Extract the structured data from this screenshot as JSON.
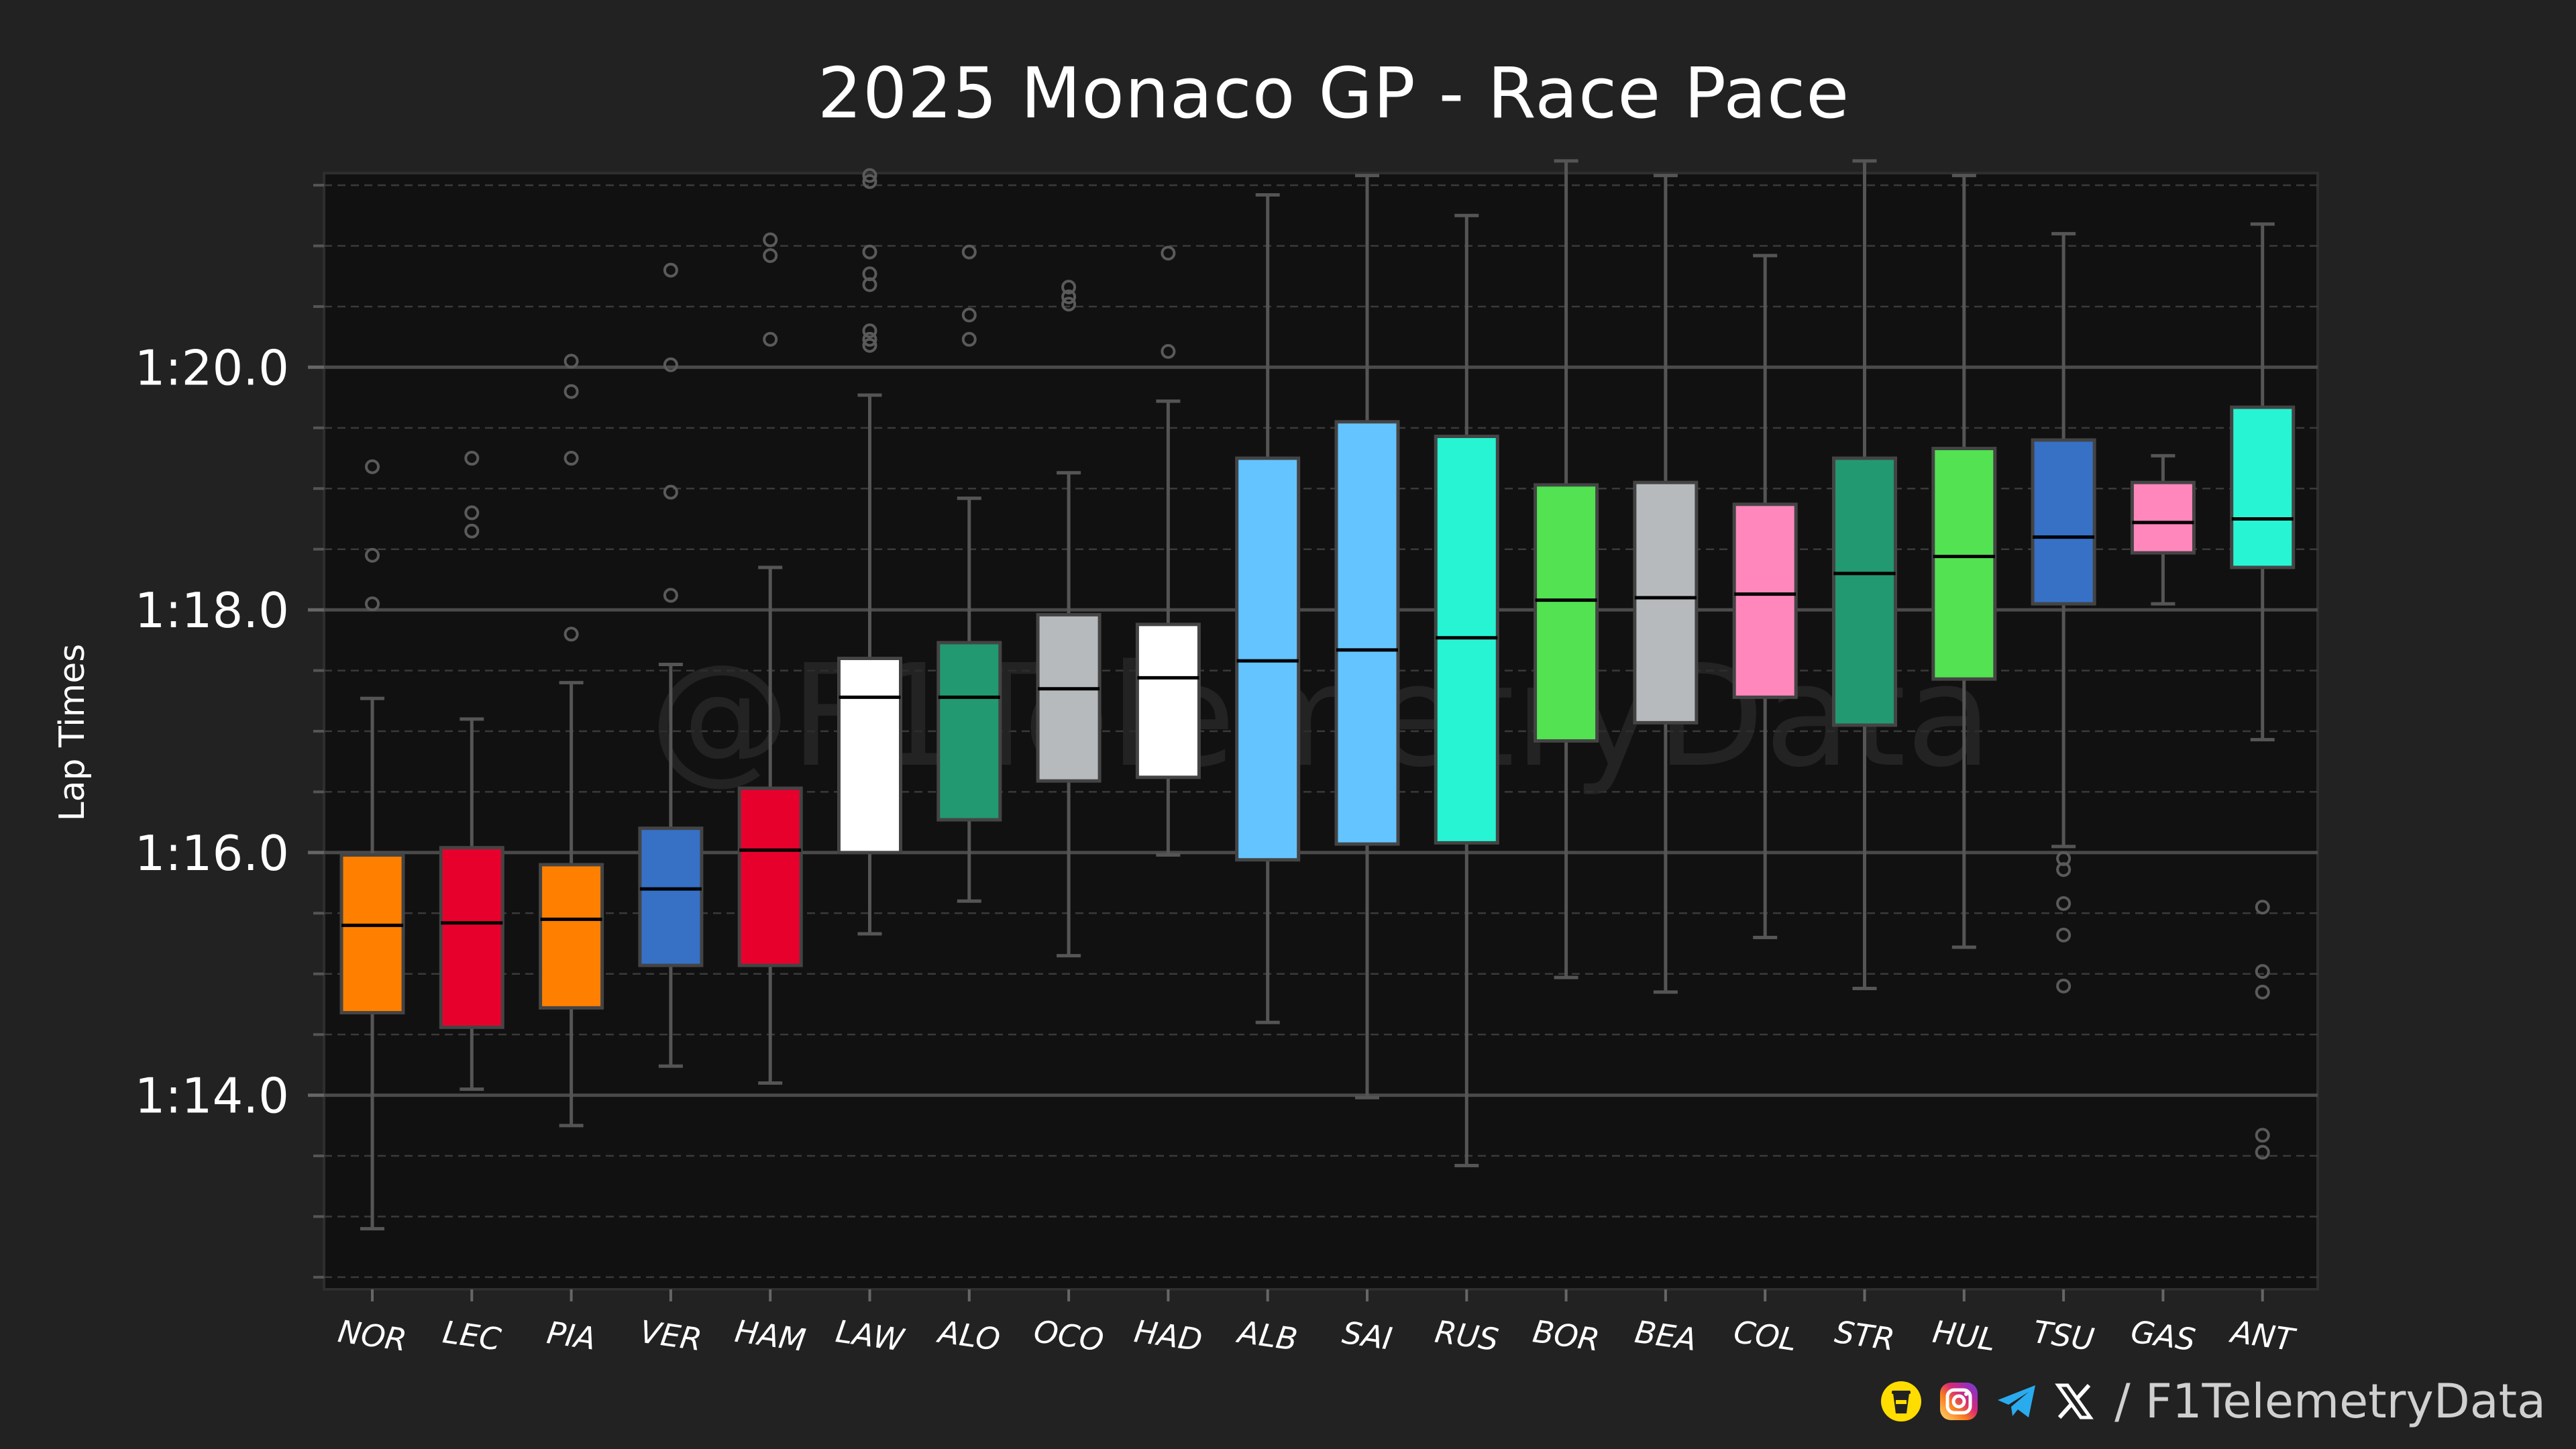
{
  "chart_data": {
    "type": "boxplot",
    "title": "2025 Monaco GP - Race Pace",
    "xlabel": "",
    "ylabel": "Lap Times",
    "ylim_seconds": [
      72.4,
      81.6
    ],
    "y_ticks": [
      {
        "value": 74.0,
        "label": "1:14.0"
      },
      {
        "value": 76.0,
        "label": "1:16.0"
      },
      {
        "value": 78.0,
        "label": "1:18.0"
      },
      {
        "value": 80.0,
        "label": "1:20.0"
      }
    ],
    "y_minor_step": 0.5,
    "grid": "major solid, minor dashed",
    "watermark": "@F1TelemetryData",
    "drivers": [
      {
        "label": "NOR",
        "color": "#FF8000",
        "q1": 74.68,
        "median": 75.4,
        "q3": 75.98,
        "whisker_low": 72.9,
        "whisker_high": 77.27,
        "outliers": [
          78.05,
          78.45,
          79.18
        ]
      },
      {
        "label": "LEC",
        "color": "#E8002D",
        "q1": 74.56,
        "median": 75.42,
        "q3": 76.04,
        "whisker_low": 74.05,
        "whisker_high": 77.1,
        "outliers": [
          78.65,
          78.8,
          79.25
        ]
      },
      {
        "label": "PIA",
        "color": "#FF8000",
        "q1": 74.72,
        "median": 75.45,
        "q3": 75.9,
        "whisker_low": 73.75,
        "whisker_high": 77.4,
        "outliers": [
          77.8,
          79.25,
          79.8,
          80.05
        ]
      },
      {
        "label": "VER",
        "color": "#3671C6",
        "q1": 75.07,
        "median": 75.7,
        "q3": 76.2,
        "whisker_low": 74.24,
        "whisker_high": 77.55,
        "outliers": [
          78.12,
          78.97,
          80.02,
          80.8
        ]
      },
      {
        "label": "HAM",
        "color": "#E8002D",
        "q1": 75.07,
        "median": 76.02,
        "q3": 76.53,
        "whisker_low": 74.1,
        "whisker_high": 78.35,
        "outliers": [
          80.23,
          80.92,
          81.05
        ]
      },
      {
        "label": "LAW",
        "color": "#FFFFFF",
        "q1": 76.0,
        "median": 77.28,
        "q3": 77.6,
        "whisker_low": 75.33,
        "whisker_high": 79.77,
        "outliers": [
          80.18,
          80.23,
          80.3,
          80.68,
          80.77,
          80.95,
          81.53,
          81.58
        ]
      },
      {
        "label": "ALO",
        "color": "#229971",
        "q1": 76.27,
        "median": 77.28,
        "q3": 77.73,
        "whisker_low": 75.6,
        "whisker_high": 78.92,
        "outliers": [
          80.23,
          80.43,
          80.95
        ]
      },
      {
        "label": "OCO",
        "color": "#B6BABD",
        "q1": 76.59,
        "median": 77.35,
        "q3": 77.96,
        "whisker_low": 75.15,
        "whisker_high": 79.13,
        "outliers": [
          80.52,
          80.58,
          80.66
        ]
      },
      {
        "label": "HAD",
        "color": "#FFFFFF",
        "q1": 76.62,
        "median": 77.44,
        "q3": 77.88,
        "whisker_low": 75.98,
        "whisker_high": 79.72,
        "outliers": [
          80.13,
          80.94
        ]
      },
      {
        "label": "ALB",
        "color": "#64C4FF",
        "q1": 75.94,
        "median": 77.58,
        "q3": 79.25,
        "whisker_low": 74.6,
        "whisker_high": 81.42,
        "outliers": []
      },
      {
        "label": "SAI",
        "color": "#64C4FF",
        "q1": 76.07,
        "median": 77.67,
        "q3": 79.55,
        "whisker_low": 73.98,
        "whisker_high": 81.58,
        "outliers": []
      },
      {
        "label": "RUS",
        "color": "#27F4D2",
        "q1": 76.08,
        "median": 77.77,
        "q3": 79.43,
        "whisker_low": 73.42,
        "whisker_high": 81.25,
        "outliers": []
      },
      {
        "label": "BOR",
        "color": "#52E252",
        "q1": 76.92,
        "median": 78.08,
        "q3": 79.03,
        "whisker_low": 74.97,
        "whisker_high": 81.7,
        "outliers": []
      },
      {
        "label": "BEA",
        "color": "#B6BABD",
        "q1": 77.07,
        "median": 78.1,
        "q3": 79.05,
        "whisker_low": 74.85,
        "whisker_high": 81.58,
        "outliers": []
      },
      {
        "label": "COL",
        "color": "#FF87BC",
        "q1": 77.28,
        "median": 78.13,
        "q3": 78.87,
        "whisker_low": 75.3,
        "whisker_high": 80.92,
        "outliers": []
      },
      {
        "label": "STR",
        "color": "#229971",
        "q1": 77.05,
        "median": 78.3,
        "q3": 79.25,
        "whisker_low": 74.88,
        "whisker_high": 81.7,
        "outliers": []
      },
      {
        "label": "HUL",
        "color": "#52E252",
        "q1": 77.43,
        "median": 78.44,
        "q3": 79.33,
        "whisker_low": 75.22,
        "whisker_high": 81.58,
        "outliers": []
      },
      {
        "label": "TSU",
        "color": "#3671C6",
        "q1": 78.05,
        "median": 78.6,
        "q3": 79.4,
        "whisker_low": 76.05,
        "whisker_high": 81.1,
        "outliers": [
          74.9,
          75.32,
          75.58,
          75.86,
          75.95
        ]
      },
      {
        "label": "GAS",
        "color": "#FF87BC",
        "q1": 78.47,
        "median": 78.72,
        "q3": 79.05,
        "whisker_low": 78.05,
        "whisker_high": 79.27,
        "outliers": []
      },
      {
        "label": "ANT",
        "color": "#27F4D2",
        "q1": 78.35,
        "median": 78.75,
        "q3": 79.67,
        "whisker_low": 76.93,
        "whisker_high": 81.18,
        "outliers": [
          73.53,
          73.67,
          74.85,
          75.02,
          75.55
        ]
      }
    ]
  },
  "footer": {
    "slash": "/",
    "handle": "F1TelemetryData",
    "icons": [
      "buymeacoffee-icon",
      "instagram-icon",
      "telegram-icon",
      "x-icon"
    ]
  }
}
